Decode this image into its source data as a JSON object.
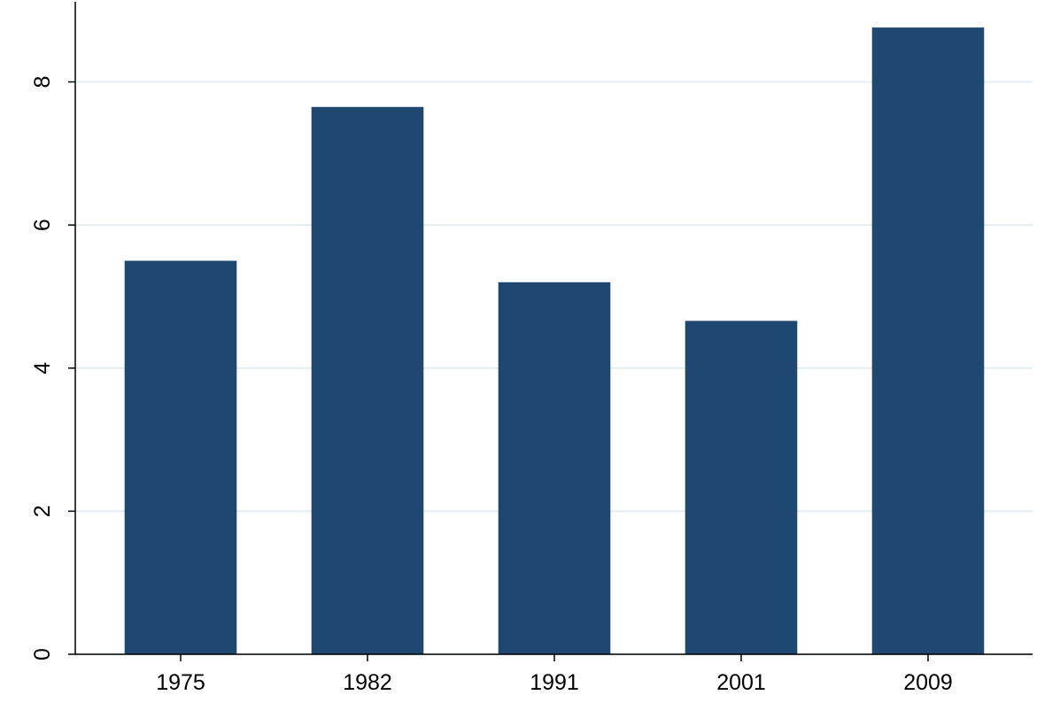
{
  "chart_data": {
    "type": "bar",
    "categories": [
      "1975",
      "1982",
      "1991",
      "2001",
      "2009"
    ],
    "values": [
      5.5,
      7.65,
      5.2,
      4.66,
      8.76
    ],
    "color": "#1f4870",
    "ylim": [
      0,
      9.12
    ],
    "yticks": [
      0,
      2,
      4,
      6,
      8
    ],
    "grid": true
  }
}
